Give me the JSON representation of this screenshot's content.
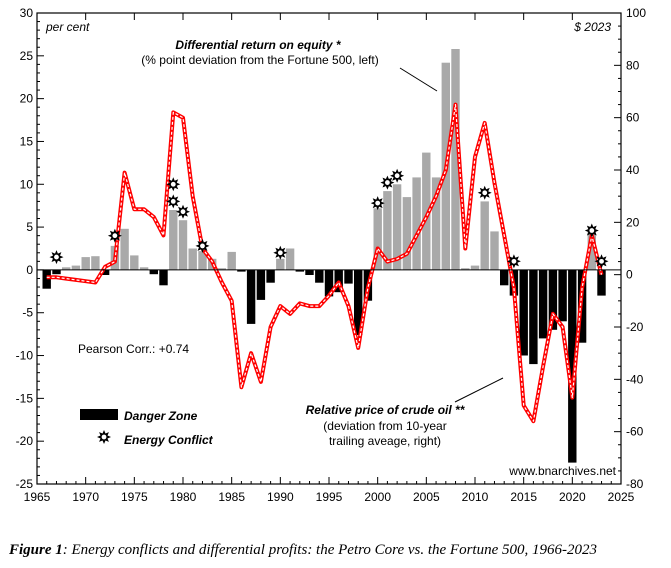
{
  "chart_data": {
    "type": "bar+line",
    "left_unit_label": "per cent",
    "right_unit_label": "$ 2023",
    "x_ticks": [
      1965,
      1970,
      1975,
      1980,
      1985,
      1990,
      1995,
      2000,
      2005,
      2010,
      2015,
      2020,
      2025
    ],
    "left_ticks": [
      30,
      25,
      20,
      15,
      10,
      5,
      0,
      -5,
      -10,
      -15,
      -20,
      -25
    ],
    "right_ticks": [
      100,
      80,
      60,
      40,
      20,
      0,
      -20,
      -40,
      -60,
      -80
    ],
    "xlim": [
      1965,
      2025
    ],
    "ylim_left": [
      -25,
      30
    ],
    "ylim_right": [
      -80,
      100
    ],
    "series": [
      {
        "name": "Differential return on equity",
        "axis": "left",
        "kind": "bar",
        "years": [
          1966,
          1967,
          1968,
          1969,
          1970,
          1971,
          1972,
          1973,
          1974,
          1975,
          1976,
          1977,
          1978,
          1979,
          1980,
          1981,
          1982,
          1983,
          1984,
          1985,
          1986,
          1987,
          1988,
          1989,
          1990,
          1991,
          1992,
          1993,
          1994,
          1995,
          1996,
          1997,
          1998,
          1999,
          2000,
          2001,
          2002,
          2003,
          2004,
          2005,
          2006,
          2007,
          2008,
          2009,
          2010,
          2011,
          2012,
          2013,
          2014,
          2015,
          2016,
          2017,
          2018,
          2019,
          2020,
          2021,
          2022,
          2023
        ],
        "values": [
          -2.2,
          -0.5,
          0.3,
          0.5,
          1.5,
          1.6,
          -0.6,
          2.8,
          4.8,
          1.7,
          0.3,
          -0.5,
          -1.8,
          7,
          5.8,
          2.5,
          2.2,
          1.3,
          0.2,
          2.1,
          -0.2,
          -6.3,
          -3.5,
          -1.5,
          1.3,
          2.5,
          -0.2,
          -0.6,
          -1.5,
          -3.1,
          -2.6,
          -1.6,
          -7.6,
          -3.6,
          7.2,
          9.2,
          10,
          8.5,
          10.8,
          13.7,
          10.8,
          24.2,
          25.8,
          0.2,
          0.5,
          8,
          4.5,
          -1.8,
          -3,
          -10,
          -11,
          -8,
          -7,
          -6,
          -22.5,
          -8.5,
          4.6,
          -3
        ]
      },
      {
        "name": "Relative price of crude oil",
        "axis": "right",
        "kind": "line",
        "years": [
          1966,
          1967,
          1968,
          1969,
          1970,
          1971,
          1972,
          1973,
          1974,
          1975,
          1976,
          1977,
          1978,
          1979,
          1980,
          1981,
          1982,
          1983,
          1984,
          1985,
          1986,
          1987,
          1988,
          1989,
          1990,
          1991,
          1992,
          1993,
          1994,
          1995,
          1996,
          1997,
          1998,
          1999,
          2000,
          2001,
          2002,
          2003,
          2004,
          2005,
          2006,
          2007,
          2008,
          2009,
          2010,
          2011,
          2012,
          2013,
          2014,
          2015,
          2016,
          2017,
          2018,
          2019,
          2020,
          2021,
          2022,
          2023
        ],
        "values": [
          -1,
          -1,
          -1.5,
          -2,
          -2.5,
          -3,
          3,
          5,
          39,
          25,
          25,
          22,
          15,
          62,
          60,
          30,
          10,
          5,
          -3,
          -10,
          -43,
          -30,
          -41,
          -20,
          -12,
          -15,
          -11,
          -12,
          -12,
          -8,
          -3,
          -12,
          -28,
          -5,
          10,
          5,
          6,
          8,
          15,
          22,
          30,
          40,
          65,
          10,
          45,
          58,
          35,
          15,
          -5,
          -50,
          -56,
          -35,
          -15,
          -20,
          -47,
          -5,
          15,
          0
        ]
      },
      {
        "name": "Energy Conflict",
        "axis": "left",
        "kind": "marker",
        "points": [
          {
            "x": 1967,
            "y": 1.5
          },
          {
            "x": 1973,
            "y": 4
          },
          {
            "x": 1979,
            "y": 10
          },
          {
            "x": 1979,
            "y": 8
          },
          {
            "x": 1980,
            "y": 6.8
          },
          {
            "x": 1982,
            "y": 2.8
          },
          {
            "x": 1990,
            "y": 2
          },
          {
            "x": 2000,
            "y": 7.8
          },
          {
            "x": 2001,
            "y": 10.2
          },
          {
            "x": 2002,
            "y": 11
          },
          {
            "x": 2011,
            "y": 9
          },
          {
            "x": 2014,
            "y": 1
          },
          {
            "x": 2022,
            "y": 4.6
          },
          {
            "x": 2023,
            "y": 1
          }
        ]
      }
    ],
    "annotations": {
      "roe_title": "Differential return on equity *",
      "roe_sub": "(% point deviation from the Fortune 500, left)",
      "oil_title": "Relative price of crude oil **",
      "oil_sub1": "(deviation from 10-year",
      "oil_sub2": "trailing aveage, right)",
      "pearson": "Pearson Corr.: +0.74",
      "source": "www.bnarchives.net"
    },
    "legend": {
      "danger": "Danger Zone",
      "conflict": "Energy Conflict"
    },
    "colors": {
      "bar_positive": "#a9a9a9",
      "bar_negative": "#000000",
      "line_outer": "#ff0000",
      "line_inner": "#ffffff"
    }
  },
  "caption": {
    "label": "Figure 1",
    "text": ": Energy conflicts and differential profits: the Petro Core vs. the Fortune 500, 1966-2023"
  }
}
